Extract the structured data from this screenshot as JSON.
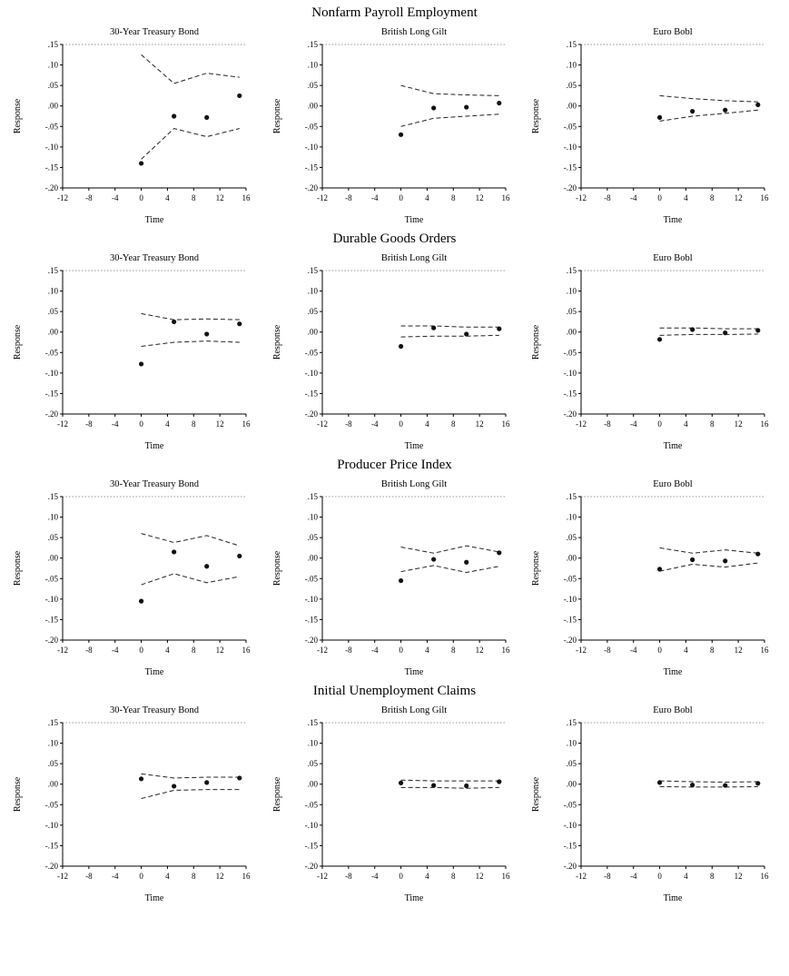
{
  "figure": {
    "row_titles": [
      "Nonfarm Payroll Employment",
      "Durable Goods Orders",
      "Producer Price Index",
      "Initial Unemployment Claims"
    ]
  },
  "chart_layout": {
    "xlabel": "Time",
    "ylabel": "Response",
    "xlim": [
      -12,
      16
    ],
    "ylim": [
      -0.2,
      0.15
    ],
    "xticks": [
      -12,
      -8,
      -4,
      0,
      4,
      8,
      12,
      16
    ],
    "yticks": [
      0.15,
      0.1,
      0.05,
      0.0,
      -0.05,
      -0.1,
      -0.15,
      -0.2
    ],
    "ytick_labels": [
      ".15",
      ".10",
      ".05",
      ".00",
      "-.05",
      "-.10",
      "-.15",
      "-.20"
    ],
    "line_style": "dashed-confidence-bands",
    "point_style": "filled-black-dots",
    "grid": false,
    "legend": "none"
  },
  "chart_data": [
    {
      "type": "scatter",
      "group": "Nonfarm Payroll Employment",
      "title": "30-Year Treasury Bond",
      "x": [
        0,
        5,
        10,
        15
      ],
      "response": [
        -0.14,
        -0.025,
        -0.028,
        0.025
      ],
      "upper_band": [
        0.125,
        0.055,
        0.08,
        0.07
      ],
      "lower_band": [
        -0.13,
        -0.055,
        -0.075,
        -0.055
      ]
    },
    {
      "type": "scatter",
      "group": "Nonfarm Payroll Employment",
      "title": "British Long Gilt",
      "x": [
        0,
        5,
        10,
        15
      ],
      "response": [
        -0.07,
        -0.005,
        -0.003,
        0.007
      ],
      "upper_band": [
        0.05,
        0.03,
        0.027,
        0.025
      ],
      "lower_band": [
        -0.05,
        -0.03,
        -0.025,
        -0.02
      ]
    },
    {
      "type": "scatter",
      "group": "Nonfarm Payroll Employment",
      "title": "Euro Bobl",
      "x": [
        0,
        5,
        10,
        15
      ],
      "response": [
        -0.028,
        -0.013,
        -0.01,
        0.003
      ],
      "upper_band": [
        0.025,
        0.018,
        0.013,
        0.01
      ],
      "lower_band": [
        -0.037,
        -0.025,
        -0.018,
        -0.01
      ]
    },
    {
      "type": "scatter",
      "group": "Durable Goods Orders",
      "title": "30-Year Treasury Bond",
      "x": [
        0,
        5,
        10,
        15
      ],
      "response": [
        -0.078,
        0.025,
        -0.005,
        0.02
      ],
      "upper_band": [
        0.045,
        0.03,
        0.032,
        0.03
      ],
      "lower_band": [
        -0.035,
        -0.025,
        -0.022,
        -0.025
      ]
    },
    {
      "type": "scatter",
      "group": "Durable Goods Orders",
      "title": "British Long Gilt",
      "x": [
        0,
        5,
        10,
        15
      ],
      "response": [
        -0.035,
        0.01,
        -0.005,
        0.008
      ],
      "upper_band": [
        0.015,
        0.015,
        0.012,
        0.012
      ],
      "lower_band": [
        -0.012,
        -0.01,
        -0.01,
        -0.008
      ]
    },
    {
      "type": "scatter",
      "group": "Durable Goods Orders",
      "title": "Euro Bobl",
      "x": [
        0,
        5,
        10,
        15
      ],
      "response": [
        -0.018,
        0.006,
        -0.002,
        0.004
      ],
      "upper_band": [
        0.01,
        0.01,
        0.008,
        0.008
      ],
      "lower_band": [
        -0.008,
        -0.006,
        -0.006,
        -0.005
      ]
    },
    {
      "type": "scatter",
      "group": "Producer Price Index",
      "title": "30-Year Treasury Bond",
      "x": [
        0,
        5,
        10,
        15
      ],
      "response": [
        -0.105,
        0.015,
        -0.02,
        0.005
      ],
      "upper_band": [
        0.06,
        0.038,
        0.055,
        0.03
      ],
      "lower_band": [
        -0.065,
        -0.038,
        -0.06,
        -0.045
      ]
    },
    {
      "type": "scatter",
      "group": "Producer Price Index",
      "title": "British Long Gilt",
      "x": [
        0,
        5,
        10,
        15
      ],
      "response": [
        -0.055,
        -0.003,
        -0.01,
        0.013
      ],
      "upper_band": [
        0.027,
        0.012,
        0.03,
        0.015
      ],
      "lower_band": [
        -0.033,
        -0.018,
        -0.035,
        -0.02
      ]
    },
    {
      "type": "scatter",
      "group": "Producer Price Index",
      "title": "Euro Bobl",
      "x": [
        0,
        5,
        10,
        15
      ],
      "response": [
        -0.027,
        -0.004,
        -0.007,
        0.01
      ],
      "upper_band": [
        0.025,
        0.012,
        0.02,
        0.012
      ],
      "lower_band": [
        -0.032,
        -0.015,
        -0.022,
        -0.012
      ]
    },
    {
      "type": "scatter",
      "group": "Initial Unemployment Claims",
      "title": "30-Year Treasury Bond",
      "x": [
        0,
        5,
        10,
        15
      ],
      "response": [
        0.013,
        -0.005,
        0.004,
        0.015
      ],
      "upper_band": [
        0.025,
        0.015,
        0.017,
        0.017
      ],
      "lower_band": [
        -0.035,
        -0.015,
        -0.013,
        -0.013
      ]
    },
    {
      "type": "scatter",
      "group": "Initial Unemployment Claims",
      "title": "British Long Gilt",
      "x": [
        0,
        5,
        10,
        15
      ],
      "response": [
        0.003,
        -0.003,
        -0.004,
        0.006
      ],
      "upper_band": [
        0.01,
        0.008,
        0.008,
        0.008
      ],
      "lower_band": [
        -0.008,
        -0.008,
        -0.01,
        -0.008
      ]
    },
    {
      "type": "scatter",
      "group": "Initial Unemployment Claims",
      "title": "Euro Bobl",
      "x": [
        0,
        5,
        10,
        15
      ],
      "response": [
        0.004,
        -0.002,
        -0.003,
        0.002
      ],
      "upper_band": [
        0.008,
        0.006,
        0.005,
        0.006
      ],
      "lower_band": [
        -0.006,
        -0.007,
        -0.007,
        -0.006
      ]
    }
  ],
  "colors": {
    "axis": "#000000",
    "point": "#111111",
    "band_line": "#222222",
    "top_border": "#777777",
    "background": "#ffffff"
  }
}
